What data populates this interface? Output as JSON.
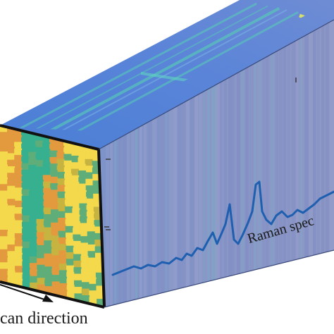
{
  "labels": {
    "spectrum": "Raman spec",
    "scan": "can direction"
  },
  "colors": {
    "top_face_base": "#4f86d8",
    "top_face_streak": "#58d0b4",
    "top_face_highlight": "#e8ee5a",
    "side_face_base": "#8895c8",
    "side_face_stripe": "#7fa8c6",
    "front_face_green": "#36b08f",
    "front_face_orange": "#e39a3e",
    "front_face_yellow": "#f3d94b",
    "spectrum_line": "#1f5fb0",
    "frame_edge": "#111111",
    "text": "#1a1a1a"
  }
}
